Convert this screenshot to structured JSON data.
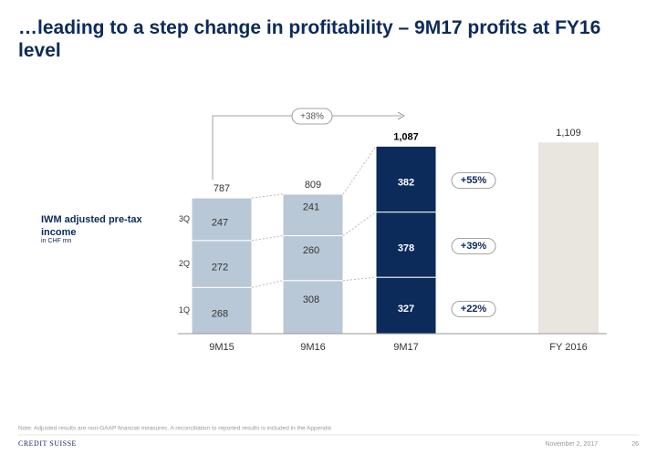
{
  "chart_data": {
    "type": "stacked_bar",
    "title": "…leading to a step change in profitability – 9M17 profits at FY16 level",
    "y_label": "IWM adjusted pre-tax income",
    "y_sublabel": "in CHF mn",
    "categories": [
      "9M15",
      "9M16",
      "9M17"
    ],
    "series": [
      {
        "name": "1Q",
        "values": [
          268,
          308,
          327
        ]
      },
      {
        "name": "2Q",
        "values": [
          272,
          260,
          378
        ]
      },
      {
        "name": "3Q",
        "values": [
          247,
          241,
          382
        ]
      }
    ],
    "bar_colors": [
      "#b9c8d7",
      "#b9c8d7",
      "#0c2a5a"
    ],
    "totals": {
      "values": [
        787,
        809,
        1087
      ],
      "value_labels": [
        "787",
        "809",
        "1,087"
      ]
    },
    "reference": {
      "category": "FY 2016",
      "value": 1109,
      "value_label": "1,109",
      "color": "#e9e5df"
    },
    "growth_total": "+38%",
    "growth_by_series": [
      "+22%",
      "+39%",
      "+55%"
    ],
    "ylim": [
      0,
      1200
    ]
  },
  "footer": {
    "note": "Note: Adjusted results are non-GAAP financial measures. A reconciliation to reported results is included in the Appendix",
    "logo": "CREDIT SUISSE",
    "date": "November 2, 2017",
    "page": "26"
  }
}
